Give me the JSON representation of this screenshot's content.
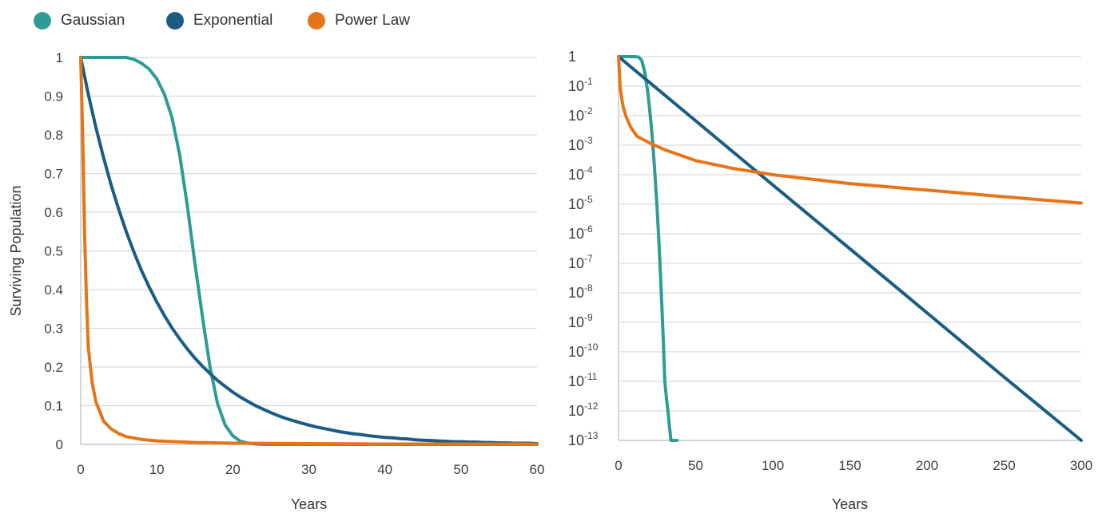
{
  "legend": [
    {
      "label": "Gaussian",
      "color": "#2E9C95"
    },
    {
      "label": "Exponential",
      "color": "#1B5C83"
    },
    {
      "label": "Power Law",
      "color": "#E67519"
    }
  ],
  "chart_data": [
    {
      "type": "line",
      "scale": "linear",
      "xlabel": "Years",
      "ylabel": "Surviving Population",
      "xlim": [
        0,
        60
      ],
      "ylim": [
        0,
        1
      ],
      "xticks": [
        "0",
        "10",
        "20",
        "30",
        "40",
        "50",
        "60"
      ],
      "yticks": [
        "0",
        "0.1",
        "0.2",
        "0.3",
        "0.4",
        "0.5",
        "0.6",
        "0.7",
        "0.8",
        "0.9",
        "1"
      ],
      "grid": true,
      "series": [
        {
          "name": "Gaussian",
          "color": "#2E9C95",
          "x": [
            0,
            2,
            4,
            6,
            7,
            8,
            9,
            10,
            11,
            12,
            13,
            14,
            15,
            16,
            17,
            18,
            19,
            20,
            21,
            22,
            23,
            24,
            60
          ],
          "y": [
            1,
            1,
            1,
            1,
            0.995,
            0.985,
            0.97,
            0.945,
            0.905,
            0.845,
            0.75,
            0.62,
            0.47,
            0.33,
            0.2,
            0.105,
            0.05,
            0.022,
            0.008,
            0.003,
            0.001,
            0,
            0
          ]
        },
        {
          "name": "Exponential",
          "color": "#1B5C83",
          "x": [
            0,
            1,
            2,
            3,
            4,
            5,
            6,
            7,
            8,
            9,
            10,
            11,
            12,
            13,
            14,
            15,
            16,
            17,
            18,
            19,
            20,
            21,
            22,
            23,
            24,
            25,
            26,
            27,
            28,
            29,
            30,
            31,
            32,
            33,
            34,
            35,
            36,
            37,
            38,
            39,
            40,
            41,
            42,
            43,
            44,
            45,
            46,
            47,
            48,
            49,
            50,
            51,
            52,
            53,
            54,
            55,
            56,
            57,
            58,
            59,
            60
          ],
          "y": [
            1,
            0.905,
            0.819,
            0.741,
            0.67,
            0.607,
            0.549,
            0.497,
            0.449,
            0.407,
            0.368,
            0.333,
            0.301,
            0.273,
            0.247,
            0.223,
            0.202,
            0.183,
            0.165,
            0.15,
            0.135,
            0.122,
            0.111,
            0.1,
            0.091,
            0.082,
            0.074,
            0.067,
            0.061,
            0.055,
            0.05,
            0.045,
            0.041,
            0.037,
            0.033,
            0.03,
            0.027,
            0.025,
            0.022,
            0.02,
            0.018,
            0.017,
            0.015,
            0.014,
            0.012,
            0.011,
            0.01,
            0.009,
            0.008,
            0.007,
            0.007,
            0.006,
            0.006,
            0.005,
            0.005,
            0.004,
            0.004,
            0.003,
            0.003,
            0.003,
            0.002
          ]
        },
        {
          "name": "Power Law",
          "color": "#E67519",
          "x": [
            0,
            0.25,
            0.5,
            0.75,
            1,
            1.5,
            2,
            3,
            4,
            5,
            6,
            8,
            10,
            15,
            20,
            30,
            40,
            50,
            60
          ],
          "y": [
            1,
            0.8,
            0.55,
            0.38,
            0.25,
            0.16,
            0.11,
            0.06,
            0.04,
            0.028,
            0.02,
            0.013,
            0.009,
            0.005,
            0.003,
            0.002,
            0.001,
            0.001,
            0.001
          ]
        }
      ]
    },
    {
      "type": "line",
      "scale": "log",
      "xlabel": "Years",
      "ylabel": "",
      "xlim": [
        0,
        300
      ],
      "ylim": [
        1e-13,
        1
      ],
      "xticks": [
        "0",
        "50",
        "100",
        "150",
        "200",
        "250",
        "300"
      ],
      "yticks": [
        {
          "base": "1",
          "exp": ""
        },
        {
          "base": "10",
          "exp": "-1"
        },
        {
          "base": "10",
          "exp": "-2"
        },
        {
          "base": "10",
          "exp": "-3"
        },
        {
          "base": "10",
          "exp": "-4"
        },
        {
          "base": "10",
          "exp": "-5"
        },
        {
          "base": "10",
          "exp": "-6"
        },
        {
          "base": "10",
          "exp": "-7"
        },
        {
          "base": "10",
          "exp": "-8"
        },
        {
          "base": "10",
          "exp": "-9"
        },
        {
          "base": "10",
          "exp": "-10"
        },
        {
          "base": "10",
          "exp": "-11"
        },
        {
          "base": "10",
          "exp": "-12"
        },
        {
          "base": "10",
          "exp": "-13"
        }
      ],
      "grid": true,
      "series": [
        {
          "name": "Gaussian",
          "color": "#2E9C95",
          "x": [
            0,
            10,
            13,
            15,
            17,
            19,
            20,
            21,
            22,
            23,
            24,
            25,
            26,
            27,
            28,
            29,
            30,
            31,
            32,
            33,
            34,
            35,
            36,
            37,
            38
          ],
          "y": [
            1,
            1,
            0.97,
            0.75,
            0.3,
            0.06,
            0.02,
            0.006,
            0.0015,
            0.0003,
            5e-05,
            7e-06,
            8e-07,
            7e-08,
            5e-09,
            2.5e-10,
            1e-11,
            3e-12,
            1e-12,
            3e-13,
            1e-13,
            1e-13,
            1e-13,
            1e-13,
            1e-13
          ]
        },
        {
          "name": "Exponential",
          "color": "#1B5C83",
          "x": [
            0,
            50,
            100,
            150,
            200,
            250,
            300
          ],
          "y": [
            1,
            0.0067,
            4.5e-05,
            3.1e-07,
            2.1e-09,
            1.4e-11,
            1e-13
          ]
        },
        {
          "name": "Power Law",
          "color": "#E67519",
          "x": [
            0,
            0.5,
            1,
            2,
            3,
            5,
            8,
            12,
            20,
            30,
            50,
            75,
            100,
            150,
            200,
            250,
            300
          ],
          "y": [
            1,
            0.3,
            0.1,
            0.04,
            0.02,
            0.009,
            0.004,
            0.002,
            0.0012,
            0.0007,
            0.0003,
            0.00016,
            0.0001,
            5e-05,
            3e-05,
            1.8e-05,
            1.1e-05
          ]
        }
      ]
    }
  ]
}
